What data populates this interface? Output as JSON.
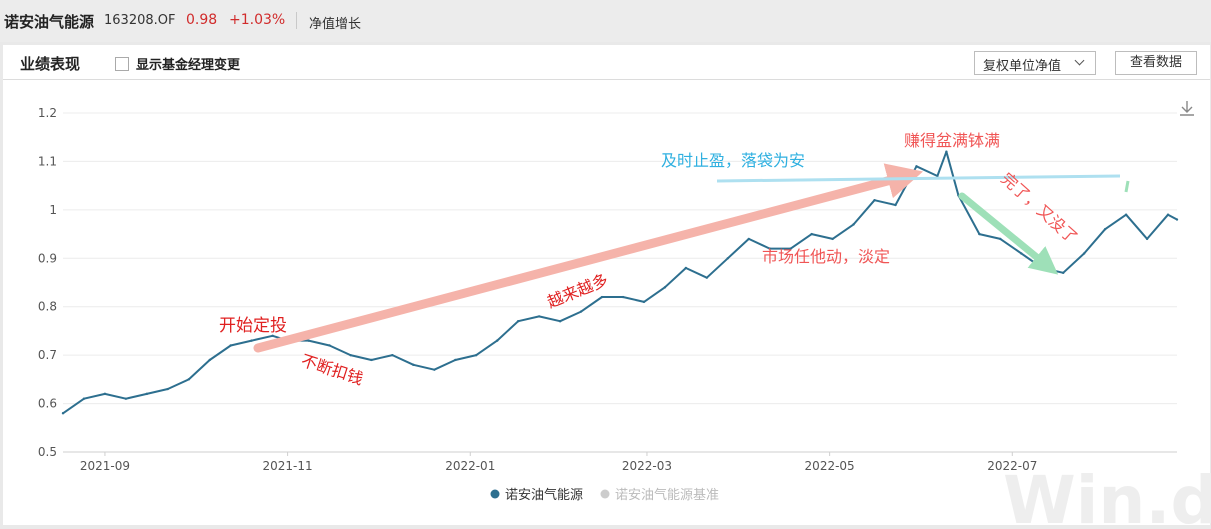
{
  "header": {
    "fund_name": "诺安油气能源",
    "fund_code": "163208.OF",
    "nav": "0.98",
    "change": "+1.03%",
    "growth_label": "净值增长"
  },
  "panel": {
    "title": "业绩表现",
    "checkbox_label": "显示基金经理变更",
    "dropdown_value": "复权单位净值",
    "view_data_button": "查看数据",
    "download_icon": "download-icon",
    "watermark": "Win.d"
  },
  "colors": {
    "fund_line": "#2d6f8f",
    "benchmark": "#cccccc",
    "red_text": "#e02020",
    "pink_arrow": "#f5b3aa",
    "cyan": "#2fb0e0",
    "green_arrow": "#9ee0b8"
  },
  "annotations": {
    "start": "开始定投",
    "keep_paying": "不断扣钱",
    "more_and_more": "越来越多",
    "take_profit": "及时止盈，落袋为安",
    "earn_full": "赚得盆满钵满",
    "market_drift": "市场任他动，淡定",
    "gone_again": "完了，又没了"
  },
  "chart_data": {
    "type": "line",
    "title": "",
    "xlabel": "",
    "ylabel": "",
    "ylim": [
      0.5,
      1.2
    ],
    "yticks": [
      "0.5",
      "0.6",
      "0.7",
      "0.8",
      "0.9",
      "1",
      "1.1",
      "1.2"
    ],
    "xticks": [
      "2021-09",
      "2021-11",
      "2022-01",
      "2022-03",
      "2022-05",
      "2022-07"
    ],
    "x_range": [
      "2021-08-18",
      "2022-08-25"
    ],
    "grid": true,
    "legend_position": "bottom-center",
    "series": [
      {
        "name": "诺安油气能源",
        "color": "#2d6f8f",
        "x": [
          "2021-08-18",
          "2021-08-25",
          "2021-09-01",
          "2021-09-08",
          "2021-09-15",
          "2021-09-22",
          "2021-09-29",
          "2021-10-06",
          "2021-10-13",
          "2021-10-20",
          "2021-10-27",
          "2021-11-01",
          "2021-11-08",
          "2021-11-15",
          "2021-11-22",
          "2021-11-29",
          "2021-12-06",
          "2021-12-13",
          "2021-12-20",
          "2021-12-27",
          "2022-01-03",
          "2022-01-10",
          "2022-01-17",
          "2022-01-24",
          "2022-01-31",
          "2022-02-07",
          "2022-02-14",
          "2022-02-21",
          "2022-02-28",
          "2022-03-07",
          "2022-03-14",
          "2022-03-21",
          "2022-03-28",
          "2022-04-04",
          "2022-04-11",
          "2022-04-18",
          "2022-04-25",
          "2022-05-02",
          "2022-05-09",
          "2022-05-16",
          "2022-05-23",
          "2022-05-30",
          "2022-06-06",
          "2022-06-09",
          "2022-06-13",
          "2022-06-20",
          "2022-06-27",
          "2022-07-04",
          "2022-07-11",
          "2022-07-18",
          "2022-07-25",
          "2022-08-01",
          "2022-08-08",
          "2022-08-15",
          "2022-08-22",
          "2022-08-25"
        ],
        "y": [
          0.58,
          0.61,
          0.62,
          0.61,
          0.62,
          0.63,
          0.65,
          0.69,
          0.72,
          0.73,
          0.74,
          0.73,
          0.73,
          0.72,
          0.7,
          0.69,
          0.7,
          0.68,
          0.67,
          0.69,
          0.7,
          0.73,
          0.77,
          0.78,
          0.77,
          0.79,
          0.82,
          0.82,
          0.81,
          0.84,
          0.88,
          0.86,
          0.9,
          0.94,
          0.92,
          0.92,
          0.95,
          0.94,
          0.97,
          1.02,
          1.01,
          1.09,
          1.07,
          1.12,
          1.03,
          0.95,
          0.94,
          0.91,
          0.88,
          0.87,
          0.91,
          0.96,
          0.99,
          0.94,
          0.99,
          0.98
        ]
      },
      {
        "name": "诺安油气能源基准",
        "color": "#cccccc",
        "x": [],
        "y": []
      }
    ]
  }
}
